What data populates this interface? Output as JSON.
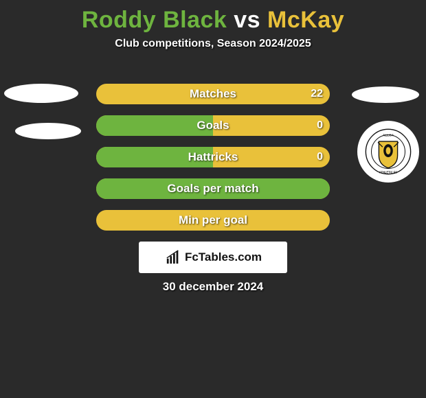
{
  "title": {
    "parts": [
      {
        "text": "Roddy Black",
        "color": "#6eb43f"
      },
      {
        "text": " vs ",
        "color": "#ffffff"
      },
      {
        "text": "McKay",
        "color": "#e9c13a"
      }
    ],
    "fontsize": 34,
    "fontweight": 800
  },
  "subtitle": "Club competitions, Season 2024/2025",
  "background_color": "#2a2a2a",
  "left_color": "#6eb43f",
  "right_color": "#e9c13a",
  "bars": [
    {
      "label": "Matches",
      "left": "",
      "right": "22",
      "fill_pct": 0,
      "bg": "right",
      "fill_side": "left"
    },
    {
      "label": "Goals",
      "left": "",
      "right": "0",
      "fill_pct": 50,
      "bg": "right",
      "fill_side": "left"
    },
    {
      "label": "Hattricks",
      "left": "",
      "right": "0",
      "fill_pct": 50,
      "bg": "right",
      "fill_side": "left"
    },
    {
      "label": "Goals per match",
      "left": "",
      "right": "",
      "fill_pct": 100,
      "bg": "right",
      "fill_side": "left"
    },
    {
      "label": "Min per goal",
      "left": "",
      "right": "",
      "fill_pct": 0,
      "bg": "right",
      "fill_side": "left"
    }
  ],
  "bar_style": {
    "height": 30,
    "gap": 16,
    "radius": 16,
    "label_fontsize": 17,
    "value_fontsize": 16,
    "text_color": "#ffffff"
  },
  "attribution": {
    "text": "FcTables.com",
    "bg": "#ffffff",
    "color": "#111111"
  },
  "date": "30 december 2024",
  "crest": {
    "bg": "#ffffff",
    "shield_fill": "#e9c13a",
    "shield_stroke": "#111111",
    "ring_text": "ALLOA  ATHLETIC  FC"
  }
}
